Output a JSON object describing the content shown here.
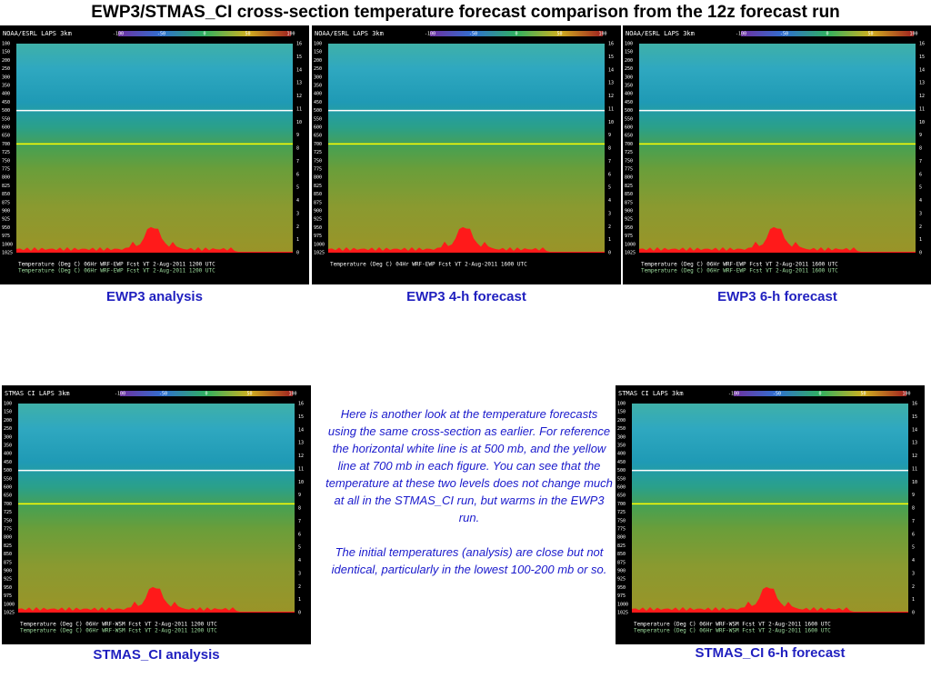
{
  "title": "EWP3/STMAS_CI cross-section temperature forecast comparison from the 12z forecast run",
  "colorbar_labels": [
    "-100",
    "-50",
    "0",
    "50",
    "100"
  ],
  "levels": [
    "100",
    "150",
    "200",
    "250",
    "300",
    "350",
    "400",
    "450",
    "500",
    "550",
    "600",
    "650",
    "700",
    "725",
    "750",
    "775",
    "800",
    "825",
    "850",
    "875",
    "900",
    "925",
    "950",
    "975",
    "1000",
    "1025"
  ],
  "heights": [
    "16",
    "15",
    "14",
    "13",
    "12",
    "11",
    "10",
    "9",
    "8",
    "7",
    "6",
    "5",
    "4",
    "3",
    "2",
    "1",
    "0"
  ],
  "panels": [
    {
      "header": "NOAA/ESRL LAPS 3km",
      "caption": "EWP3 analysis",
      "footer": [
        "Temperature (Deg C)   06Hr WRF-EWP Fcst   VT  2-Aug-2011 1200 UTC",
        "Temperature (Deg C)   06Hr WRF-EWP Fcst   VT  2-Aug-2011 1200 UTC"
      ]
    },
    {
      "header": "NOAA/ESRL LAPS 3km",
      "caption": "EWP3 4-h forecast",
      "footer": [
        "Temperature (Deg C)          04Hr WRF-EWP Fcst   VT  2-Aug-2011 1600 UTC"
      ]
    },
    {
      "header": "NOAA/ESRL LAPS 3km",
      "caption": "EWP3 6-h forecast",
      "footer": [
        "Temperature (Deg C)   06Hr WRF-EWP Fcst   VT  2-Aug-2011 1600 UTC",
        "Temperature (Deg C)   06Hr WRF-EWP Fcst   VT  2-Aug-2011 1600 UTC"
      ]
    },
    {
      "header": "STMAS CI LAPS 3km",
      "caption": "STMAS_CI analysis",
      "footer": [
        "Temperature (Deg C)   06Hr WRF-WSM Fcst   VT  2-Aug-2011 1200 UTC",
        "Temperature (Deg C)   06Hr WRF-WSM Fcst   VT  2-Aug-2011 1200 UTC"
      ]
    },
    {
      "header": "STMAS CI LAPS 3km",
      "caption": "STMAS_CI 6-h forecast",
      "footer": [
        "Temperature (Deg C)   06Hr WRF-WSM Fcst   VT  2-Aug-2011 1600 UTC",
        "Temperature (Deg C)   06Hr WRF-WSM Fcst   VT  2-Aug-2011 1600 UTC"
      ]
    }
  ],
  "paragraphs": [
    "Here is another look at the temperature forecasts using the same cross-section as earlier. For reference the horizontal white line is at 500 mb, and the yellow line at 700 mb in each figure. You can see that the temperature at these two levels does not change much at all in the STMAS_CI run, but warms in the EWP3 run.",
    "The initial temperatures (analysis) are close but not identical, particularly in the lowest 100-200 mb or so."
  ]
}
